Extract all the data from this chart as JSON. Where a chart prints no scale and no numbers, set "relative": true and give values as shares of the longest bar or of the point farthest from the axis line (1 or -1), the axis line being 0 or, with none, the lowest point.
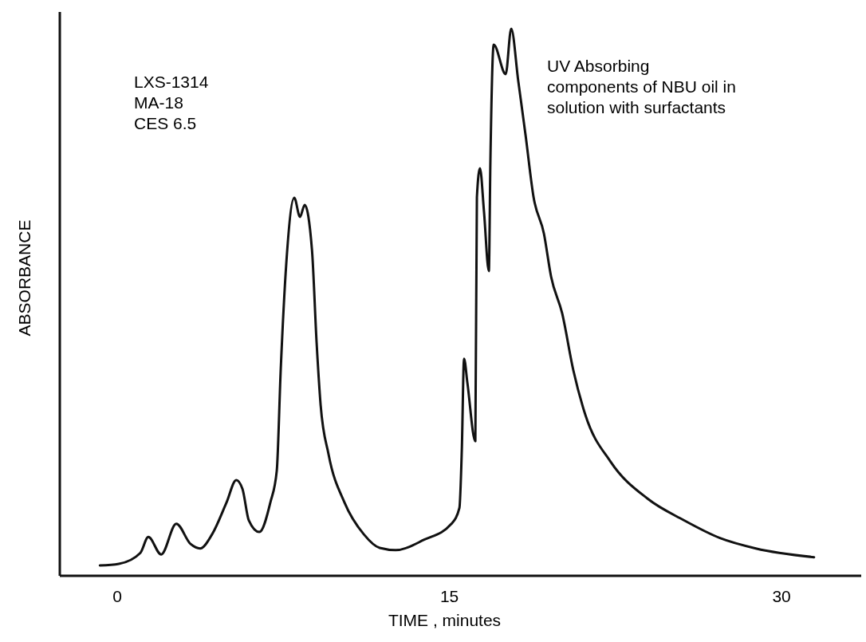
{
  "chart_data": {
    "type": "line",
    "relative": true,
    "xlabel": "TIME , minutes",
    "ylabel": "ABSORBANCE",
    "xlim": [
      -2.6,
      33.6
    ],
    "xticks": [
      0,
      15,
      30
    ],
    "grid": false,
    "marker": "none",
    "line_style": "solid",
    "annotations": [
      "LXS-1314\nMA-18\nCES 6.5",
      "UV Absorbing\ncomponents of NBU oil in\nsolution with surfactants"
    ],
    "series": [
      {
        "color": "#111111",
        "x": [
          -0.79,
          0.07,
          1.04,
          1.4,
          1.98,
          2.66,
          3.31,
          3.74,
          4.28,
          4.93,
          5.37,
          5.65,
          5.94,
          6.41,
          6.91,
          7.2,
          7.38,
          7.63,
          7.99,
          8.25,
          8.46,
          8.79,
          9.0,
          9.18,
          9.54,
          10.26,
          11.13,
          11.85,
          12.57,
          13.86,
          15.09,
          15.45,
          15.56,
          15.66,
          15.81,
          16.17,
          16.24,
          16.38,
          16.56,
          16.78,
          16.85,
          17.0,
          17.54,
          17.79,
          18.11,
          18.44,
          18.8,
          19.27,
          19.59,
          20.09,
          20.6,
          21.14,
          22.29,
          23.95,
          25.57,
          27.22,
          28.84,
          31.47
        ],
        "values": [
          0.019,
          0.022,
          0.042,
          0.071,
          0.039,
          0.095,
          0.058,
          0.05,
          0.076,
          0.134,
          0.175,
          0.159,
          0.101,
          0.08,
          0.134,
          0.192,
          0.378,
          0.571,
          0.691,
          0.656,
          0.678,
          0.596,
          0.426,
          0.313,
          0.222,
          0.134,
          0.076,
          0.051,
          0.047,
          0.066,
          0.095,
          0.124,
          0.232,
          0.397,
          0.353,
          0.246,
          0.692,
          0.745,
          0.666,
          0.557,
          0.758,
          0.971,
          0.917,
          1.0,
          0.904,
          0.805,
          0.692,
          0.625,
          0.547,
          0.48,
          0.375,
          0.294,
          0.208,
          0.141,
          0.102,
          0.069,
          0.05,
          0.034
        ]
      }
    ]
  }
}
